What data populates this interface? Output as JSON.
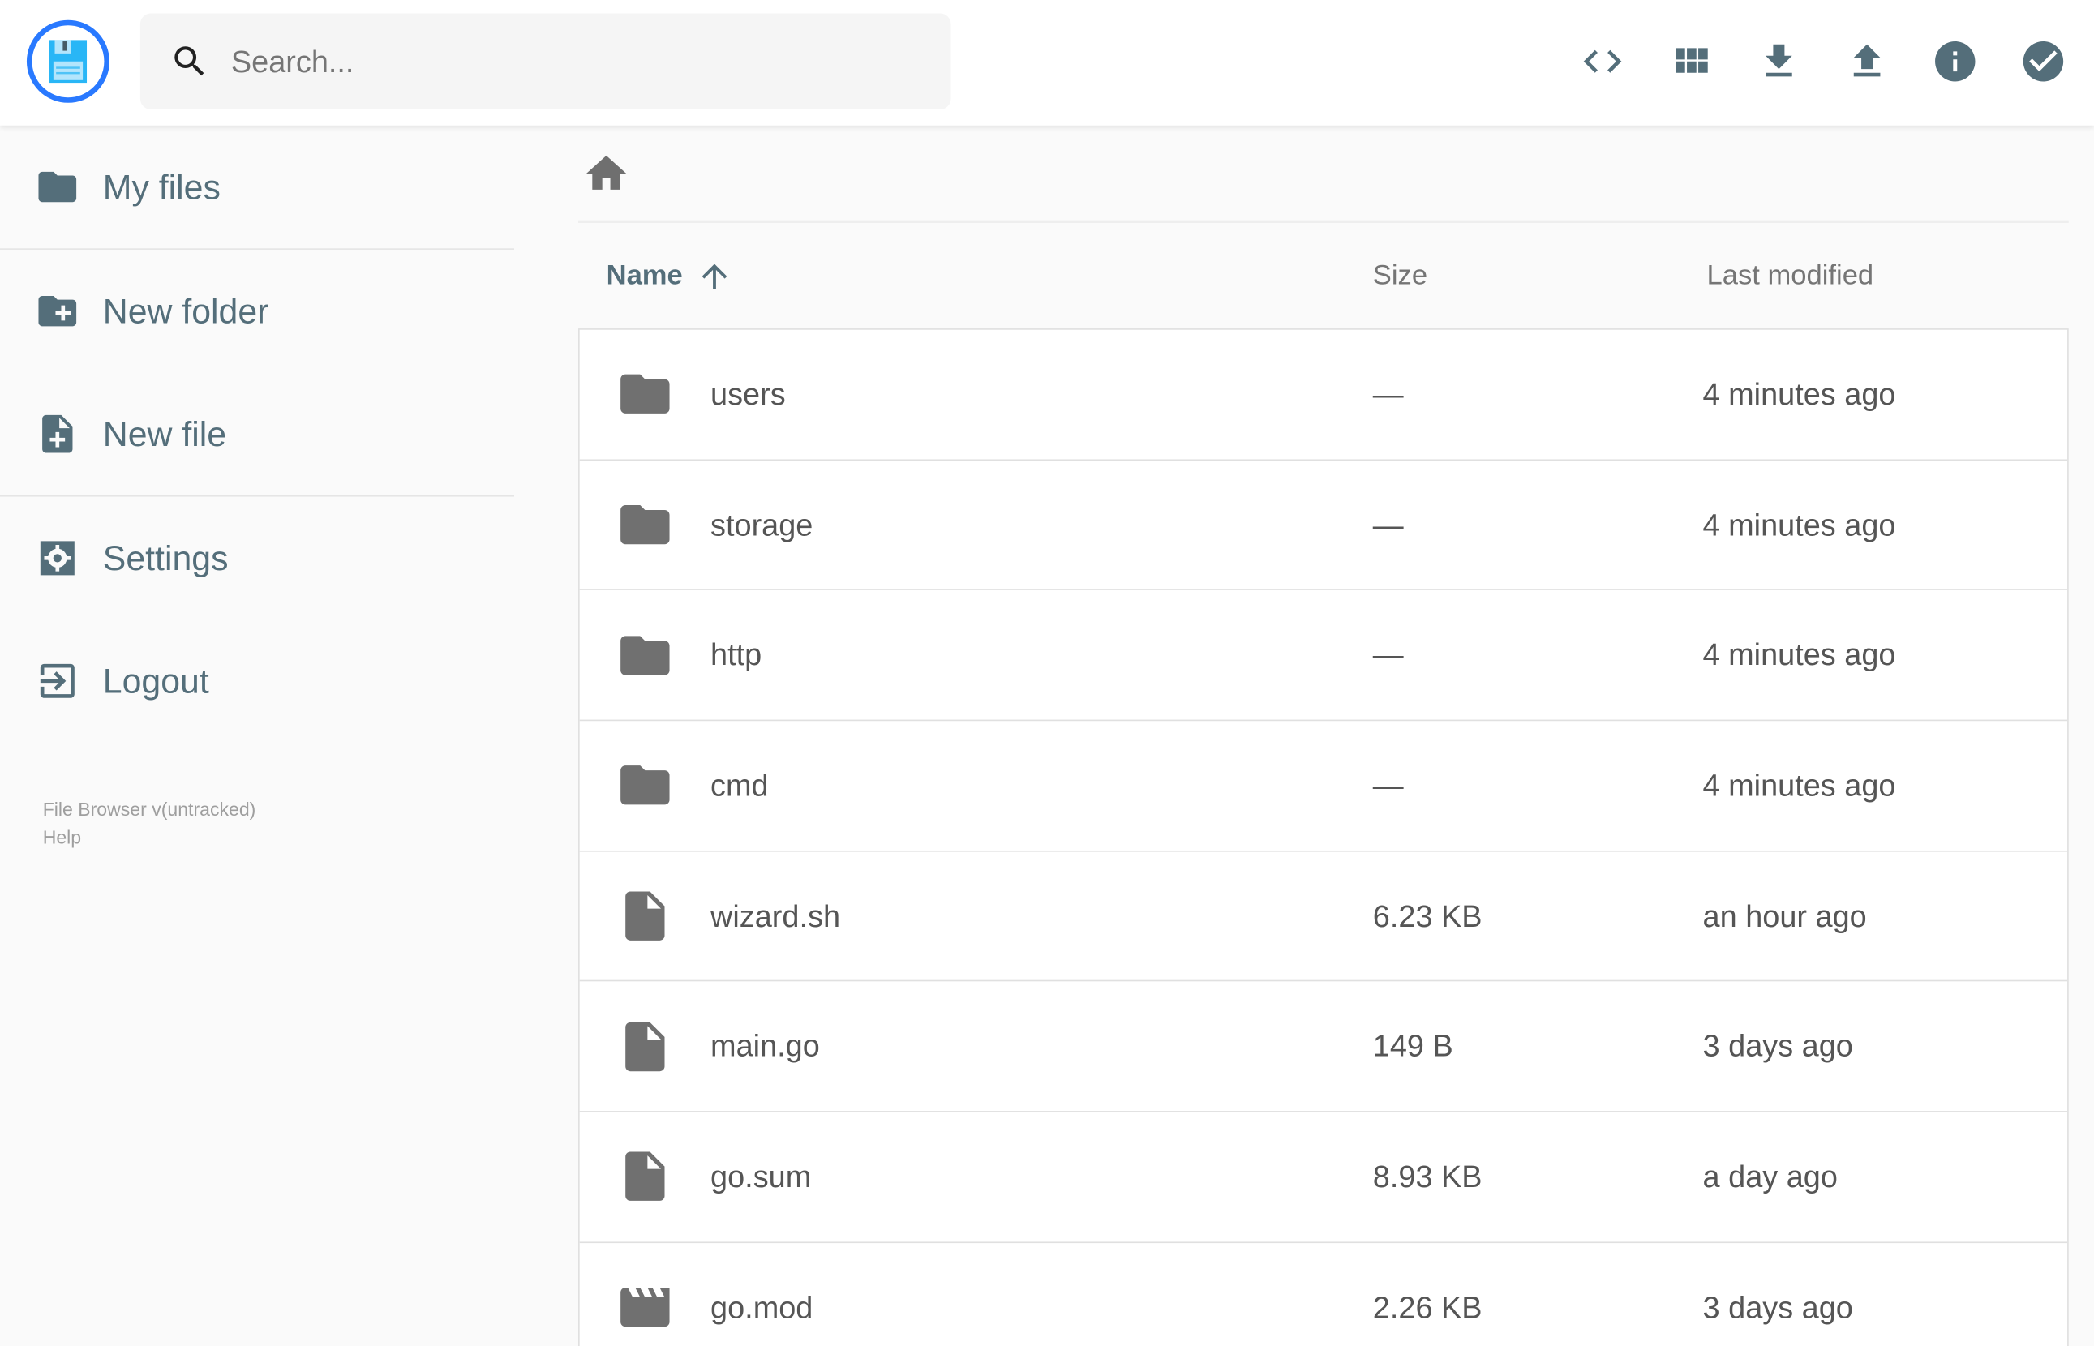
{
  "header": {
    "logo": "floppy-disk-logo",
    "search_placeholder": "Search...",
    "actions": [
      {
        "name": "toggle-code-view-button",
        "icon": "code-icon"
      },
      {
        "name": "switch-view-button",
        "icon": "grid-icon"
      },
      {
        "name": "download-button",
        "icon": "download-icon"
      },
      {
        "name": "upload-button",
        "icon": "upload-icon"
      },
      {
        "name": "info-button",
        "icon": "info-icon"
      },
      {
        "name": "select-multiple-button",
        "icon": "check-circle-icon"
      }
    ]
  },
  "sidebar": {
    "items": [
      {
        "label": "My files",
        "icon": "folder-icon"
      },
      {
        "label": "New folder",
        "icon": "create-new-folder-icon"
      },
      {
        "label": "New file",
        "icon": "note-add-icon"
      },
      {
        "label": "Settings",
        "icon": "settings-icon"
      },
      {
        "label": "Logout",
        "icon": "exit-icon"
      }
    ],
    "footer": {
      "version": "File Browser v(untracked)",
      "help": "Help"
    }
  },
  "breadcrumb": {
    "icon": "home-icon"
  },
  "table": {
    "columns": {
      "name": "Name",
      "size": "Size",
      "modified": "Last modified"
    },
    "sort": {
      "column": "Name",
      "direction": "ascending"
    },
    "rows": [
      {
        "name": "users",
        "size": "—",
        "modified": "4 minutes ago",
        "type": "folder"
      },
      {
        "name": "storage",
        "size": "—",
        "modified": "4 minutes ago",
        "type": "folder"
      },
      {
        "name": "http",
        "size": "—",
        "modified": "4 minutes ago",
        "type": "folder"
      },
      {
        "name": "cmd",
        "size": "—",
        "modified": "4 minutes ago",
        "type": "folder"
      },
      {
        "name": "wizard.sh",
        "size": "6.23 KB",
        "modified": "an hour ago",
        "type": "file"
      },
      {
        "name": "main.go",
        "size": "149 B",
        "modified": "3 days ago",
        "type": "file"
      },
      {
        "name": "go.sum",
        "size": "8.93 KB",
        "modified": "a day ago",
        "type": "file"
      },
      {
        "name": "go.mod",
        "size": "2.26 KB",
        "modified": "3 days ago",
        "type": "video"
      }
    ]
  },
  "colors": {
    "accent": "#2979ff",
    "icon": "#546e7a",
    "file_icon": "#707070"
  }
}
